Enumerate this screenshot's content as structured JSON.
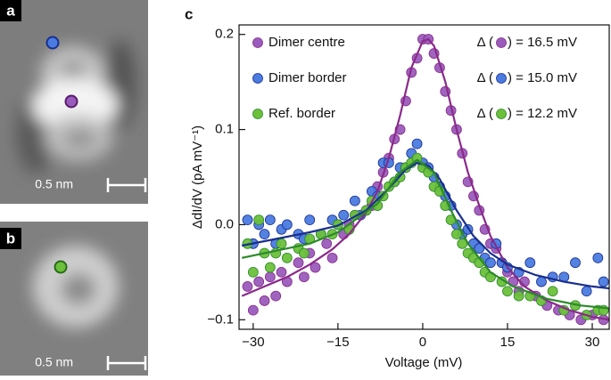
{
  "panels": {
    "a": "a",
    "b": "b",
    "scale_bar_a": "0.5 nm",
    "scale_bar_b": "0.5 nm"
  },
  "chart_data": {
    "type": "scatter",
    "panel_label": "c",
    "xlabel": "Voltage (mV)",
    "ylabel": "ΔdI/dV (pA mV⁻¹)",
    "xlim": [
      -32.5,
      33
    ],
    "ylim": [
      -0.11,
      0.21
    ],
    "xticks": [
      {
        "value": -30,
        "label": "−30"
      },
      {
        "value": -15,
        "label": "−15"
      },
      0,
      15,
      30
    ],
    "yticks": [
      {
        "value": -0.1,
        "label": "−0.1"
      },
      {
        "value": 0,
        "label": "0.0"
      },
      0.1,
      0.2
    ],
    "series": [
      {
        "name": "Dimer centre",
        "color": "#9a5cbc",
        "fit_color": "#8a2a8a",
        "gap_label": [
          "Δ (",
          ") = 16.5 mV"
        ],
        "x": [
          -31,
          -30,
          -29,
          -28,
          -27,
          -26,
          -25,
          -24,
          -22,
          -21,
          -20,
          -19,
          -17,
          -16,
          -14,
          -13,
          -12,
          -10,
          -9,
          -8,
          -7,
          -6,
          -5,
          -4,
          -3,
          -2,
          -1,
          0,
          1,
          2,
          3,
          4,
          5,
          6,
          7,
          8,
          9,
          10,
          11,
          12,
          13,
          14,
          15,
          16,
          17,
          18,
          20,
          22,
          24,
          26,
          28,
          30,
          32
        ],
        "values": [
          -0.065,
          -0.09,
          -0.06,
          -0.08,
          -0.055,
          -0.075,
          -0.05,
          -0.06,
          -0.04,
          -0.055,
          -0.03,
          -0.045,
          -0.02,
          -0.035,
          -0.01,
          0.0,
          0.01,
          0.015,
          0.02,
          0.04,
          0.055,
          0.07,
          0.09,
          0.1,
          0.13,
          0.16,
          0.175,
          0.195,
          0.195,
          0.18,
          0.165,
          0.14,
          0.12,
          0.1,
          0.075,
          0.045,
          0.03,
          0.015,
          -0.005,
          -0.02,
          -0.025,
          -0.04,
          -0.05,
          -0.06,
          -0.07,
          -0.06,
          -0.075,
          -0.085,
          -0.09,
          -0.095,
          -0.1,
          -0.095,
          -0.1
        ],
        "fit": {
          "x": [
            -32,
            -28,
            -24,
            -20,
            -16,
            -13,
            -10,
            -8,
            -6,
            -4,
            -2,
            0,
            1,
            2,
            4,
            6,
            8,
            10,
            12,
            15,
            18,
            22,
            26,
            30,
            33
          ],
          "values": [
            -0.075,
            -0.065,
            -0.055,
            -0.042,
            -0.026,
            -0.01,
            0.013,
            0.035,
            0.07,
            0.115,
            0.165,
            0.193,
            0.195,
            0.188,
            0.15,
            0.1,
            0.055,
            0.02,
            -0.012,
            -0.045,
            -0.065,
            -0.08,
            -0.09,
            -0.097,
            -0.1
          ]
        }
      },
      {
        "name": "Dimer border",
        "color": "#4a7be0",
        "fit_color": "#1a2f8f",
        "gap_label": [
          "Δ (",
          ") = 15.0 mV"
        ],
        "x": [
          -31,
          -30,
          -29,
          -28,
          -27,
          -26,
          -25,
          -24,
          -22,
          -21,
          -20,
          -18,
          -16,
          -15,
          -14,
          -12,
          -11,
          -9,
          -8,
          -7,
          -6,
          -5,
          -4,
          -3,
          -2,
          -1,
          0,
          1,
          2,
          3,
          4,
          5,
          6,
          7,
          8,
          9,
          10,
          11,
          12,
          13,
          14,
          15,
          17,
          19,
          21,
          23,
          25,
          27,
          29,
          31,
          32
        ],
        "values": [
          0.005,
          -0.02,
          0.0,
          -0.01,
          0.005,
          -0.02,
          -0.005,
          0.0,
          -0.01,
          -0.015,
          0.005,
          -0.01,
          0.005,
          0.0,
          0.01,
          0.025,
          0.01,
          0.035,
          0.03,
          0.065,
          0.065,
          0.045,
          0.06,
          0.06,
          0.075,
          0.085,
          0.065,
          0.06,
          0.05,
          0.04,
          0.03,
          0.02,
          0.0,
          -0.01,
          -0.005,
          -0.02,
          -0.025,
          -0.035,
          -0.04,
          -0.02,
          -0.04,
          -0.045,
          -0.05,
          -0.04,
          -0.06,
          -0.055,
          -0.055,
          -0.04,
          -0.07,
          -0.035,
          -0.06
        ],
        "fit": {
          "x": [
            -32,
            -26,
            -20,
            -15,
            -10,
            -6,
            -3,
            -1,
            1,
            3,
            6,
            9,
            12,
            15,
            20,
            25,
            30,
            33
          ],
          "values": [
            -0.022,
            -0.015,
            -0.008,
            -0.001,
            0.015,
            0.038,
            0.058,
            0.065,
            0.062,
            0.048,
            0.015,
            -0.012,
            -0.03,
            -0.042,
            -0.053,
            -0.06,
            -0.065,
            -0.067
          ]
        }
      },
      {
        "name": "Ref. border",
        "color": "#6cc03a",
        "fit_color": "#2a8a2a",
        "gap_label": [
          "Δ (",
          ") = 12.2 mV"
        ],
        "x": [
          -31,
          -30,
          -29,
          -28,
          -27,
          -26,
          -25,
          -24,
          -22,
          -21,
          -20,
          -18,
          -16,
          -15,
          -13,
          -12,
          -10,
          -9,
          -8,
          -7,
          -6,
          -5,
          -4,
          -3,
          -2,
          -1,
          0,
          1,
          2,
          3,
          4,
          5,
          6,
          7,
          8,
          9,
          10,
          11,
          12,
          14,
          15,
          17,
          19,
          21,
          23,
          25,
          27,
          29,
          31,
          32
        ],
        "values": [
          -0.02,
          -0.05,
          0.005,
          -0.03,
          -0.045,
          -0.03,
          -0.02,
          -0.035,
          -0.025,
          -0.03,
          -0.015,
          -0.01,
          -0.01,
          0.0,
          -0.005,
          0.01,
          0.015,
          0.025,
          0.02,
          0.03,
          0.04,
          0.045,
          0.05,
          0.06,
          0.065,
          0.07,
          0.06,
          0.055,
          0.04,
          0.035,
          0.02,
          0.005,
          -0.01,
          -0.02,
          -0.03,
          -0.035,
          -0.04,
          -0.05,
          -0.055,
          -0.06,
          -0.07,
          -0.075,
          -0.075,
          -0.08,
          -0.07,
          -0.09,
          -0.085,
          -0.095,
          -0.09,
          -0.09
        ],
        "fit": {
          "x": [
            -32,
            -20,
            -15,
            -8,
            -4,
            -1,
            2,
            5,
            8,
            12,
            16,
            22,
            28,
            33
          ],
          "values": [
            -0.035,
            -0.02,
            -0.008,
            0.022,
            0.055,
            0.068,
            0.055,
            0.015,
            -0.02,
            -0.05,
            -0.065,
            -0.078,
            -0.085,
            -0.088
          ]
        }
      }
    ]
  }
}
